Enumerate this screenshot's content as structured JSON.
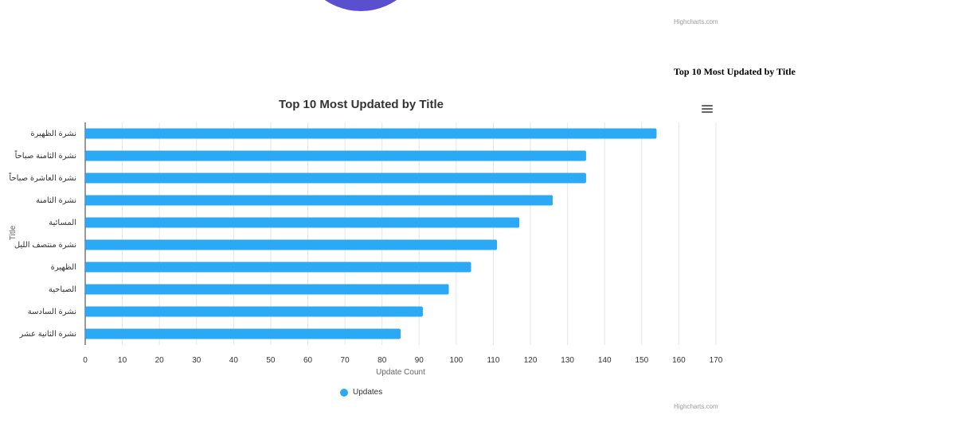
{
  "top_credit": "Highcharts.com",
  "bottom_credit": "Highcharts.com",
  "side_heading": "Top 10 Most Updated by Title",
  "colors": {
    "bar": "#2ba9f5",
    "pie": "#5a4fcf",
    "grid": "#e6e6e6",
    "axis": "#333333"
  },
  "menu": {
    "icon": "hamburger-menu-icon"
  },
  "chart_data": {
    "type": "bar",
    "orientation": "horizontal",
    "title": "Top 10 Most Updated by Title",
    "xlabel": "Update Count",
    "ylabel": "Title",
    "categories": [
      "نشرة الظهيرة",
      "نشرة الثامنة صباحاً",
      "نشرة العاشرة صباحاً",
      "نشرة الثامنة",
      "المسائية",
      "نشرة منتصف الليل",
      "الظهيرة",
      "الصباحية",
      "نشرة السادسة",
      "نشرة الثانية عشر"
    ],
    "series": [
      {
        "name": "Updates",
        "values": [
          154,
          135,
          135,
          126,
          117,
          111,
          104,
          98,
          91,
          85
        ]
      }
    ],
    "xlim": [
      0,
      170
    ],
    "ticks": [
      0,
      10,
      20,
      30,
      40,
      50,
      60,
      70,
      80,
      90,
      100,
      110,
      120,
      130,
      140,
      150,
      160,
      170
    ],
    "grid": true,
    "legend": "bottom-center"
  }
}
